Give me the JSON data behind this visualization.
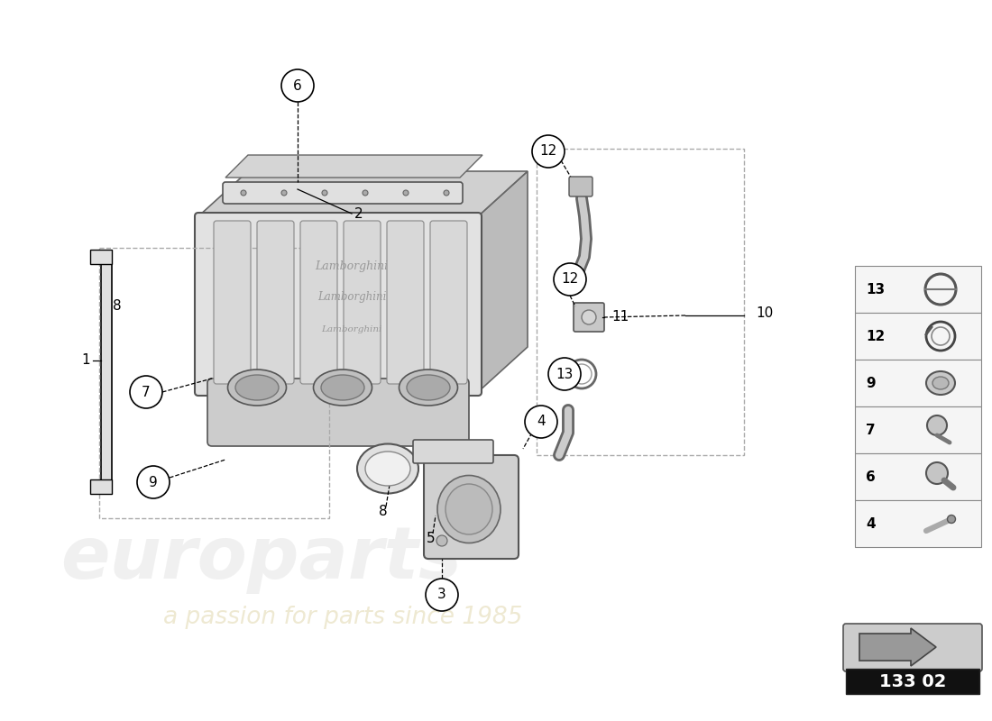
{
  "background_color": "#ffffff",
  "watermark_text": "europarts",
  "watermark_subtext": "a passion for parts since 1985",
  "diagram_box": "133 02",
  "label_color": "#000000",
  "line_color": "#000000",
  "circle_fill": "#ffffff",
  "circle_edge": "#000000",
  "legend_items": [
    {
      "num": 13
    },
    {
      "num": 12
    },
    {
      "num": 9
    },
    {
      "num": 7
    },
    {
      "num": 6
    },
    {
      "num": 4
    }
  ]
}
